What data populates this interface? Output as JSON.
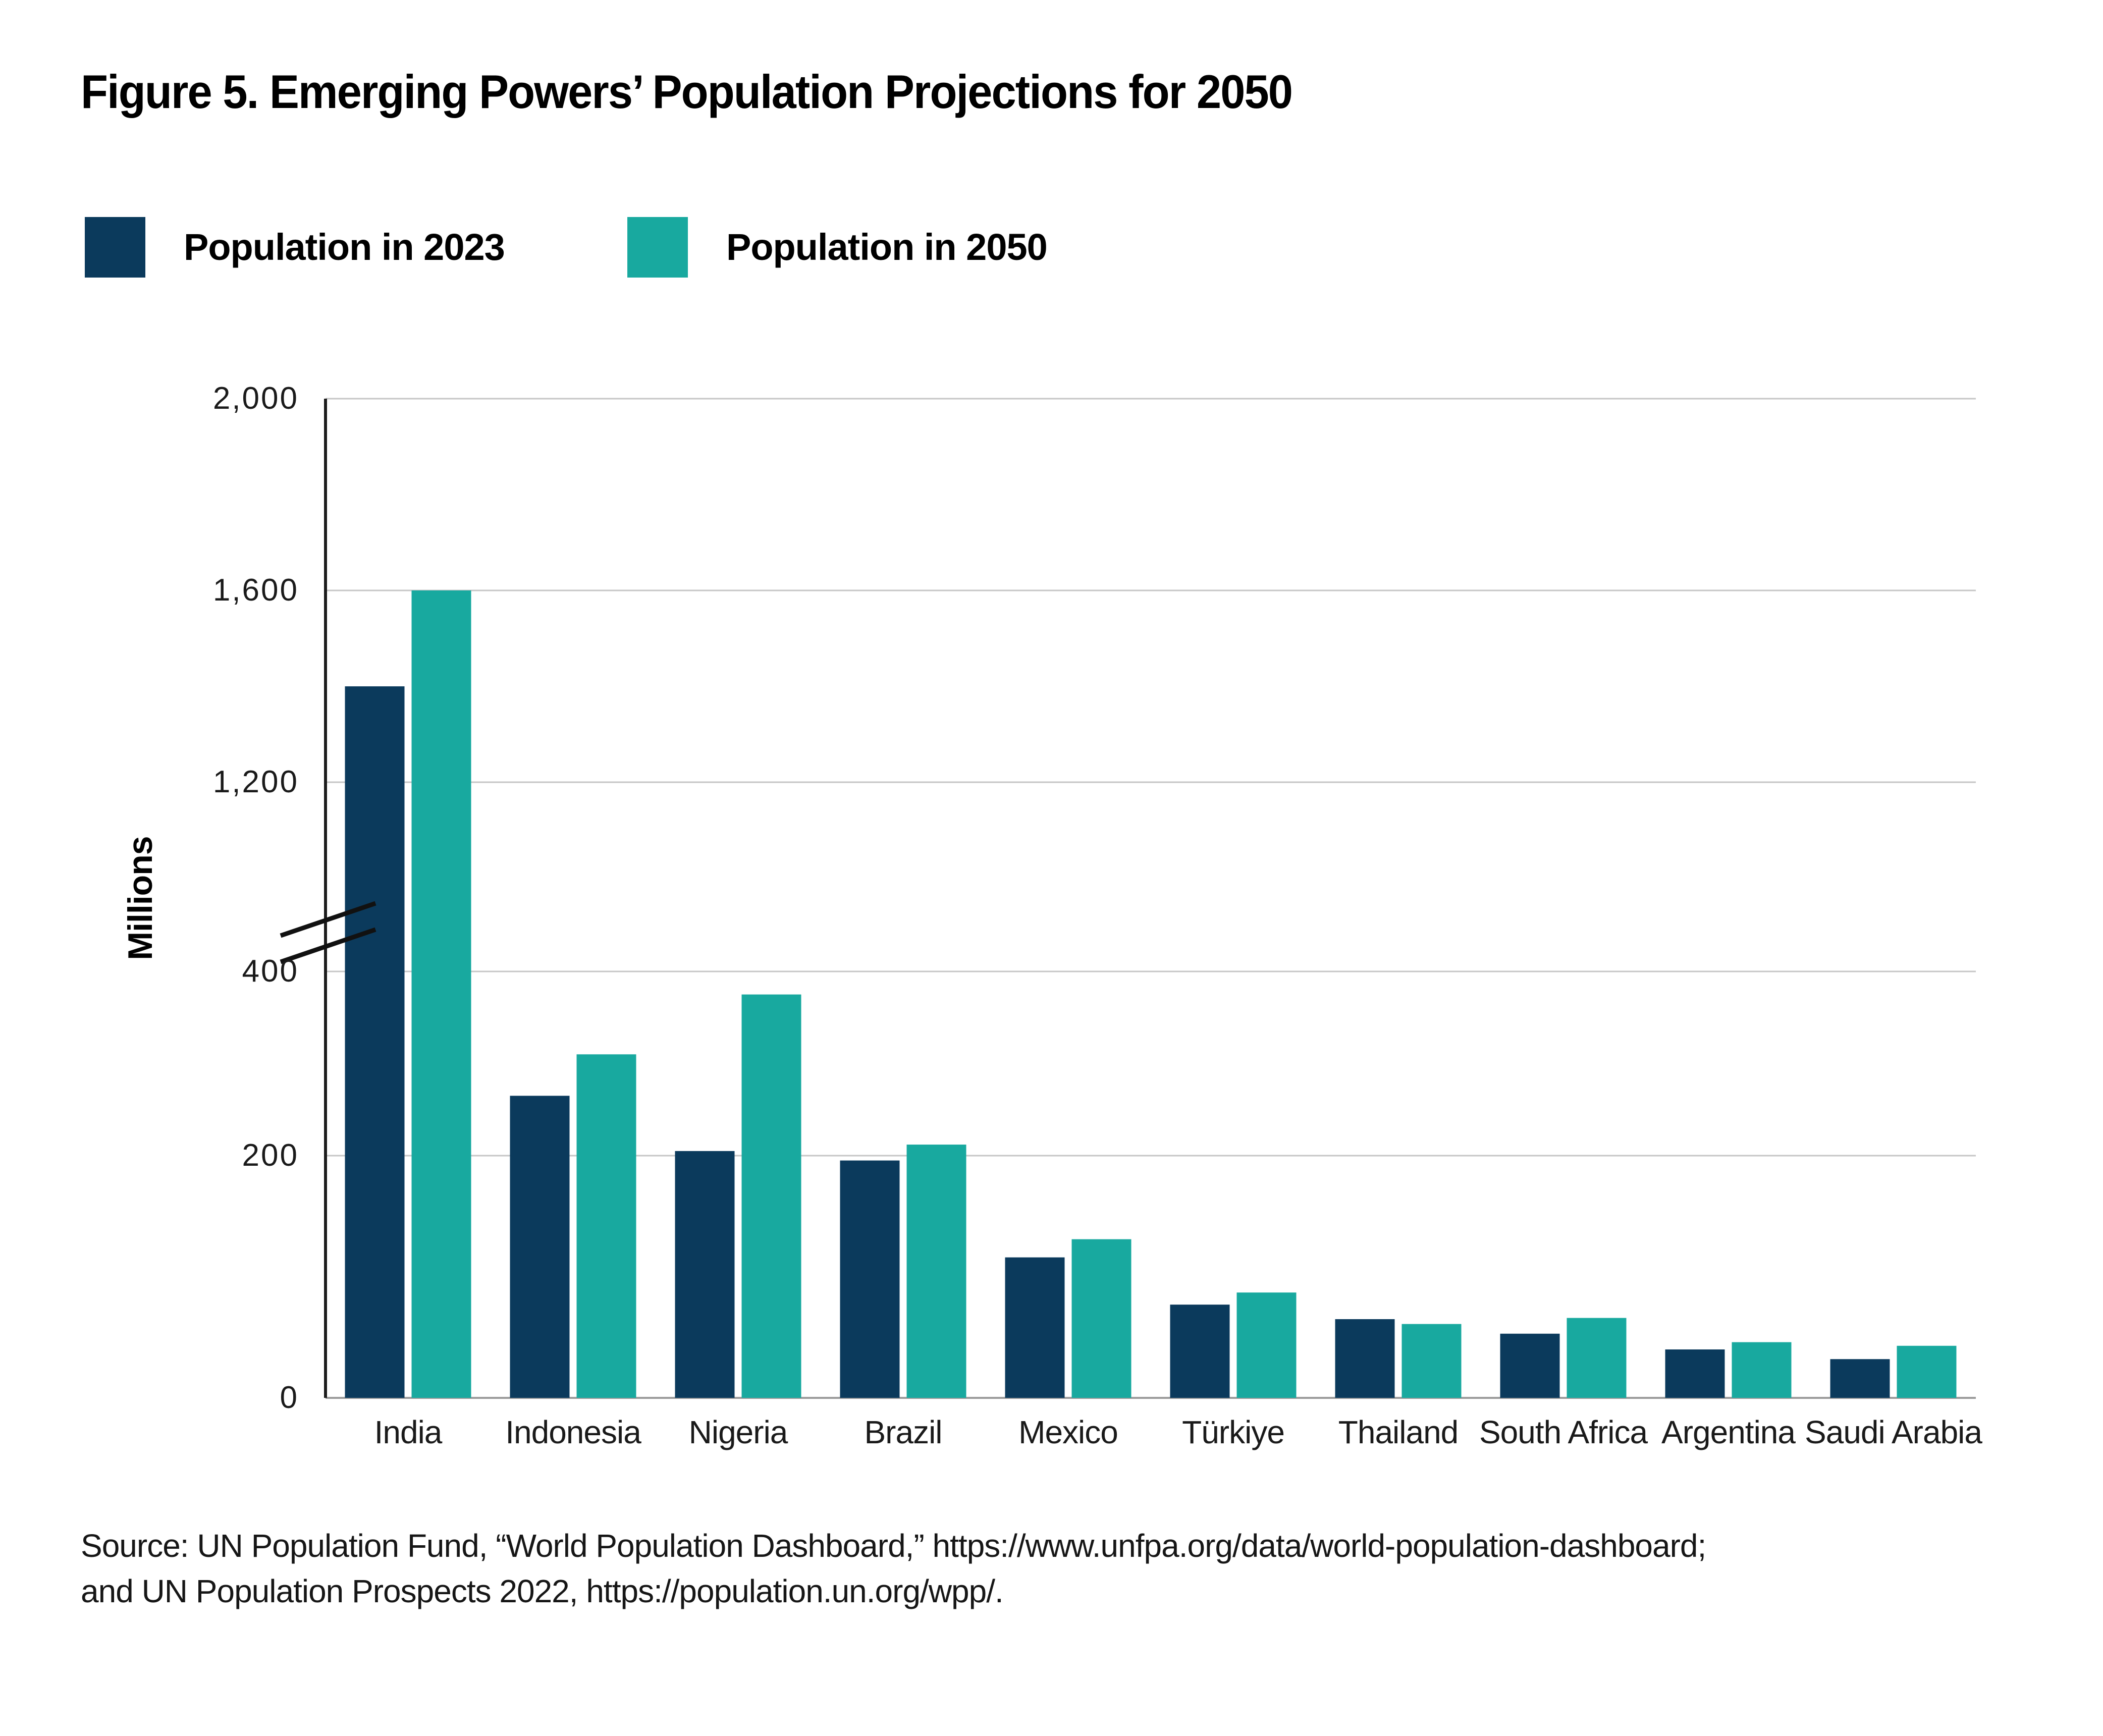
{
  "figure": {
    "title": "Figure 5. Emerging Powers’ Population Projections for 2050",
    "source_line1": "Source: UN Population Fund, “World Population Dashboard,” https://www.unfpa.org/data/world-population-dashboard;",
    "source_line2": "and UN Population Prospects 2022,  https://population.un.org/wpp/."
  },
  "legend": {
    "items": [
      {
        "label": "Population in 2023",
        "color": "#0B3A5C"
      },
      {
        "label": "Population in 2050",
        "color": "#18A99F"
      }
    ]
  },
  "chart_data": {
    "type": "bar",
    "title": "Figure 5. Emerging Powers’ Population Projections for 2050",
    "categories": [
      "India",
      "Indonesia",
      "Nigeria",
      "Brazil",
      "Mexico",
      "Türkiye",
      "Thailand",
      "South Africa",
      "Argentina",
      "Saudi Arabia"
    ],
    "series": [
      {
        "name": "Population in 2023",
        "color": "#0B3A5C",
        "values": [
          1400,
          265,
          205,
          196,
          116,
          77,
          65,
          53,
          40,
          32
        ]
      },
      {
        "name": "Population in 2050",
        "color": "#18A99F",
        "values": [
          1600,
          310,
          375,
          212,
          131,
          87,
          61,
          66,
          46,
          43
        ]
      }
    ],
    "xlabel": "",
    "ylabel": "Millions",
    "ylim": [
      0,
      2000
    ],
    "yticks": [
      0,
      200,
      400,
      1200,
      1600,
      2000
    ],
    "ytick_labels": [
      "0",
      "200",
      "400",
      "1,200",
      "1,600",
      "2,000"
    ],
    "axis_break": {
      "between": [
        400,
        1200
      ]
    },
    "grid": true,
    "gridline_color": "#c6c6c6",
    "baseline_color": "#9b9b9b",
    "axis_color": "#1c1c1c",
    "legend_position": "top-left"
  }
}
